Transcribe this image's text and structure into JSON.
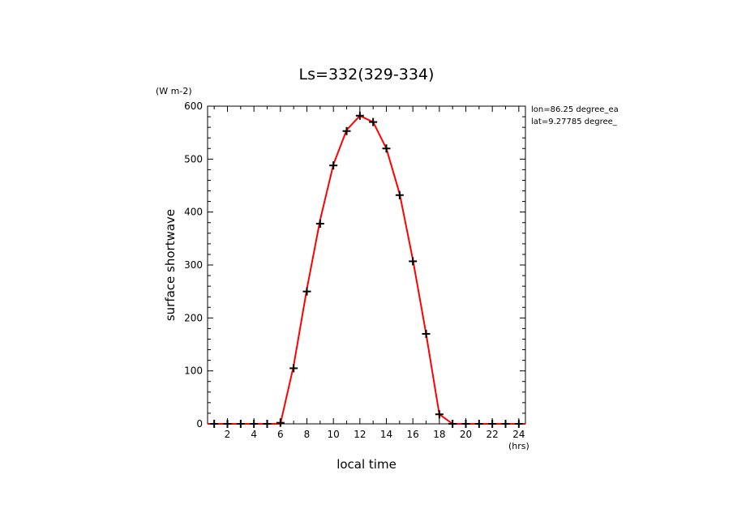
{
  "chart_data": {
    "type": "line",
    "title": "Ls=332(329-334)",
    "xlabel": "local time",
    "ylabel": "surface shortwave",
    "y_unit": "(W m-2)",
    "x_unit": "(hrs)",
    "xlim": [
      0.5,
      24.5
    ],
    "ylim": [
      0,
      600
    ],
    "x_ticks": [
      2,
      4,
      6,
      8,
      10,
      12,
      14,
      16,
      18,
      20,
      22,
      24
    ],
    "y_ticks": [
      0,
      100,
      200,
      300,
      400,
      500,
      600
    ],
    "annotations": [
      "lon=86.25 degree_ea",
      "lat=9.27785 degree_"
    ],
    "grid": false,
    "series": [
      {
        "kind": "line",
        "color": "#ff0000",
        "x": [
          0.5,
          1,
          2,
          3,
          4,
          5,
          6,
          7,
          8,
          9,
          10,
          11,
          12,
          13,
          14,
          15,
          16,
          17,
          18,
          19,
          20,
          21,
          22,
          23,
          24,
          24.5
        ],
        "values": [
          0,
          0,
          0,
          0,
          0,
          0,
          0,
          110,
          255,
          385,
          490,
          555,
          582,
          570,
          520,
          435,
          310,
          170,
          18,
          0,
          0,
          0,
          0,
          0,
          0,
          0
        ]
      },
      {
        "kind": "markers",
        "marker": "plus",
        "color": "#000000",
        "x": [
          1,
          2,
          3,
          4,
          5,
          6,
          7,
          8,
          9,
          10,
          11,
          12,
          13,
          14,
          15,
          16,
          17,
          18,
          19,
          20,
          21,
          22,
          23,
          24
        ],
        "values": [
          0,
          0,
          0,
          0,
          0,
          2,
          105,
          250,
          378,
          488,
          553,
          582,
          570,
          520,
          432,
          307,
          170,
          18,
          0,
          0,
          0,
          0,
          0,
          0
        ]
      }
    ]
  }
}
